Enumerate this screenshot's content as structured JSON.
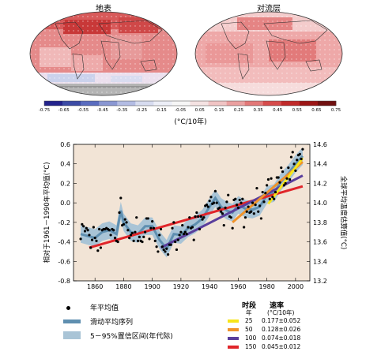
{
  "maps": {
    "left_title": "地表",
    "right_title": "对流层",
    "colorbar_ticks": [
      "-0.75",
      "-0.65",
      "-0.55",
      "-0.45",
      "-0.35",
      "-0.25",
      "-0.15",
      "-0.05",
      "0.05",
      "0.15",
      "0.25",
      "0.35",
      "0.45",
      "0.55",
      "0.65",
      "0.75"
    ],
    "colorbar_colors": [
      "#23238c",
      "#3c4ba5",
      "#5a6cbf",
      "#8a97d2",
      "#b3bce3",
      "#d6dbef",
      "#eceef7",
      "#f6f6f6",
      "#f4e2e2",
      "#f0c4c4",
      "#eaa0a0",
      "#e27878",
      "#d64c4c",
      "#c02a2a",
      "#9c1616",
      "#701010"
    ],
    "unit": "(°C/10年)"
  },
  "chart_data": {
    "type": "line",
    "xlim": [
      1845,
      2010
    ],
    "ylim": [
      -0.8,
      0.6
    ],
    "right_ylim": [
      13.2,
      14.6
    ],
    "x_ticks": [
      "1860",
      "1880",
      "1900",
      "1920",
      "1940",
      "1960",
      "1980",
      "2000"
    ],
    "y_ticks": [
      "-0.8",
      "-0.6",
      "-0.4",
      "-0.2",
      "0.0",
      "0.2",
      "0.4",
      "0.6"
    ],
    "right_ticks": [
      "13.2",
      "13.4",
      "13.6",
      "13.8",
      "14.0",
      "14.2",
      "14.4",
      "14.6"
    ],
    "ylabel": "相对于1961－1990年平均值(°C)",
    "right_ylabel": "全球平均温度估算值(°C)",
    "background": "#f2e4d6",
    "annual": {
      "x": [
        1850,
        1851,
        1852,
        1853,
        1854,
        1855,
        1856,
        1857,
        1858,
        1859,
        1860,
        1861,
        1862,
        1863,
        1864,
        1865,
        1866,
        1867,
        1868,
        1869,
        1870,
        1871,
        1872,
        1873,
        1874,
        1875,
        1876,
        1877,
        1878,
        1879,
        1880,
        1881,
        1882,
        1883,
        1884,
        1885,
        1886,
        1887,
        1888,
        1889,
        1890,
        1891,
        1892,
        1893,
        1894,
        1895,
        1896,
        1897,
        1898,
        1899,
        1900,
        1901,
        1902,
        1903,
        1904,
        1905,
        1906,
        1907,
        1908,
        1909,
        1910,
        1911,
        1912,
        1913,
        1914,
        1915,
        1916,
        1917,
        1918,
        1919,
        1920,
        1921,
        1922,
        1923,
        1924,
        1925,
        1926,
        1927,
        1928,
        1929,
        1930,
        1931,
        1932,
        1933,
        1934,
        1935,
        1936,
        1937,
        1938,
        1939,
        1940,
        1941,
        1942,
        1943,
        1944,
        1945,
        1946,
        1947,
        1948,
        1949,
        1950,
        1951,
        1952,
        1953,
        1954,
        1955,
        1956,
        1957,
        1958,
        1959,
        1960,
        1961,
        1962,
        1963,
        1964,
        1965,
        1966,
        1967,
        1968,
        1969,
        1970,
        1971,
        1972,
        1973,
        1974,
        1975,
        1976,
        1977,
        1978,
        1979,
        1980,
        1981,
        1982,
        1983,
        1984,
        1985,
        1986,
        1987,
        1988,
        1989,
        1990,
        1991,
        1992,
        1993,
        1994,
        1995,
        1996,
        1997,
        1998,
        1999,
        2000,
        2001,
        2002,
        2003,
        2004,
        2005
      ],
      "y": [
        -0.37,
        -0.22,
        -0.24,
        -0.29,
        -0.26,
        -0.28,
        -0.33,
        -0.46,
        -0.38,
        -0.25,
        -0.36,
        -0.39,
        -0.49,
        -0.27,
        -0.46,
        -0.28,
        -0.27,
        -0.27,
        -0.26,
        -0.27,
        -0.28,
        -0.33,
        -0.27,
        -0.28,
        -0.36,
        -0.39,
        -0.4,
        -0.1,
        0.05,
        -0.23,
        -0.22,
        -0.17,
        -0.2,
        -0.28,
        -0.36,
        -0.33,
        -0.31,
        -0.39,
        -0.3,
        -0.15,
        -0.39,
        -0.35,
        -0.39,
        -0.4,
        -0.35,
        -0.3,
        -0.16,
        -0.16,
        -0.37,
        -0.26,
        -0.19,
        -0.26,
        -0.39,
        -0.45,
        -0.5,
        -0.33,
        -0.27,
        -0.45,
        -0.48,
        -0.5,
        -0.47,
        -0.53,
        -0.43,
        -0.43,
        -0.26,
        -0.2,
        -0.4,
        -0.48,
        -0.38,
        -0.33,
        -0.3,
        -0.23,
        -0.32,
        -0.3,
        -0.32,
        -0.25,
        -0.15,
        -0.26,
        -0.25,
        -0.38,
        -0.14,
        -0.1,
        -0.14,
        -0.27,
        -0.14,
        -0.17,
        -0.15,
        -0.03,
        -0.02,
        -0.04,
        0.02,
        0.06,
        -0.01,
        0.0,
        0.12,
        0.0,
        -0.06,
        -0.05,
        -0.09,
        -0.11,
        -0.23,
        -0.05,
        0.01,
        0.08,
        -0.14,
        -0.15,
        -0.26,
        0.03,
        0.04,
        -0.02,
        -0.05,
        0.03,
        0.0,
        0.04,
        -0.25,
        -0.15,
        -0.09,
        -0.04,
        -0.1,
        -0.09,
        0.0,
        -0.11,
        -0.02,
        0.15,
        -0.09,
        -0.03,
        -0.16,
        0.11,
        0.01,
        0.1,
        0.18,
        0.24,
        0.04,
        0.25,
        0.06,
        0.04,
        0.11,
        0.26,
        0.26,
        0.21,
        0.36,
        0.32,
        0.18,
        0.2,
        0.25,
        0.36,
        0.24,
        0.47,
        0.52,
        0.4,
        0.33,
        0.44,
        0.49,
        0.5,
        0.45,
        0.55
      ]
    },
    "smoothed": {
      "x": [
        1850,
        1855,
        1860,
        1865,
        1870,
        1875,
        1878,
        1880,
        1885,
        1890,
        1895,
        1900,
        1905,
        1910,
        1915,
        1920,
        1925,
        1930,
        1935,
        1940,
        1944,
        1948,
        1952,
        1956,
        1960,
        1965,
        1970,
        1975,
        1980,
        1985,
        1990,
        1995,
        2000,
        2005
      ],
      "y": [
        -0.32,
        -0.34,
        -0.36,
        -0.3,
        -0.28,
        -0.32,
        -0.08,
        -0.2,
        -0.3,
        -0.32,
        -0.24,
        -0.24,
        -0.38,
        -0.47,
        -0.32,
        -0.33,
        -0.26,
        -0.22,
        -0.16,
        -0.04,
        0.05,
        -0.04,
        -0.08,
        -0.1,
        -0.02,
        -0.06,
        -0.07,
        -0.04,
        0.08,
        0.1,
        0.22,
        0.3,
        0.4,
        0.48
      ]
    },
    "band_halfwidth": 0.09,
    "trends": [
      {
        "period_years": "25",
        "rate": "0.177±0.052",
        "color": "#f7e51a",
        "x": [
          1981,
          2005
        ],
        "y": [
          -0.01,
          0.46
        ]
      },
      {
        "period_years": "50",
        "rate": "0.128±0.026",
        "color": "#f0932b",
        "x": [
          1956,
          2005
        ],
        "y": [
          -0.2,
          0.42
        ]
      },
      {
        "period_years": "100",
        "rate": "0.074±0.018",
        "color": "#5a3e9c",
        "x": [
          1906,
          2005
        ],
        "y": [
          -0.46,
          0.28
        ]
      },
      {
        "period_years": "150",
        "rate": "0.045±0.012",
        "color": "#e0252a",
        "x": [
          1856,
          2005
        ],
        "y": [
          -0.46,
          0.17
        ]
      }
    ]
  },
  "legend": {
    "annual_label": "年平均值",
    "smooth_label": "滑动平均序列",
    "band_label": "5－95%置信区间(年代际)",
    "period_header": "时段",
    "period_sub": "年",
    "rate_header": "速率",
    "rate_sub": "°C/10年"
  }
}
